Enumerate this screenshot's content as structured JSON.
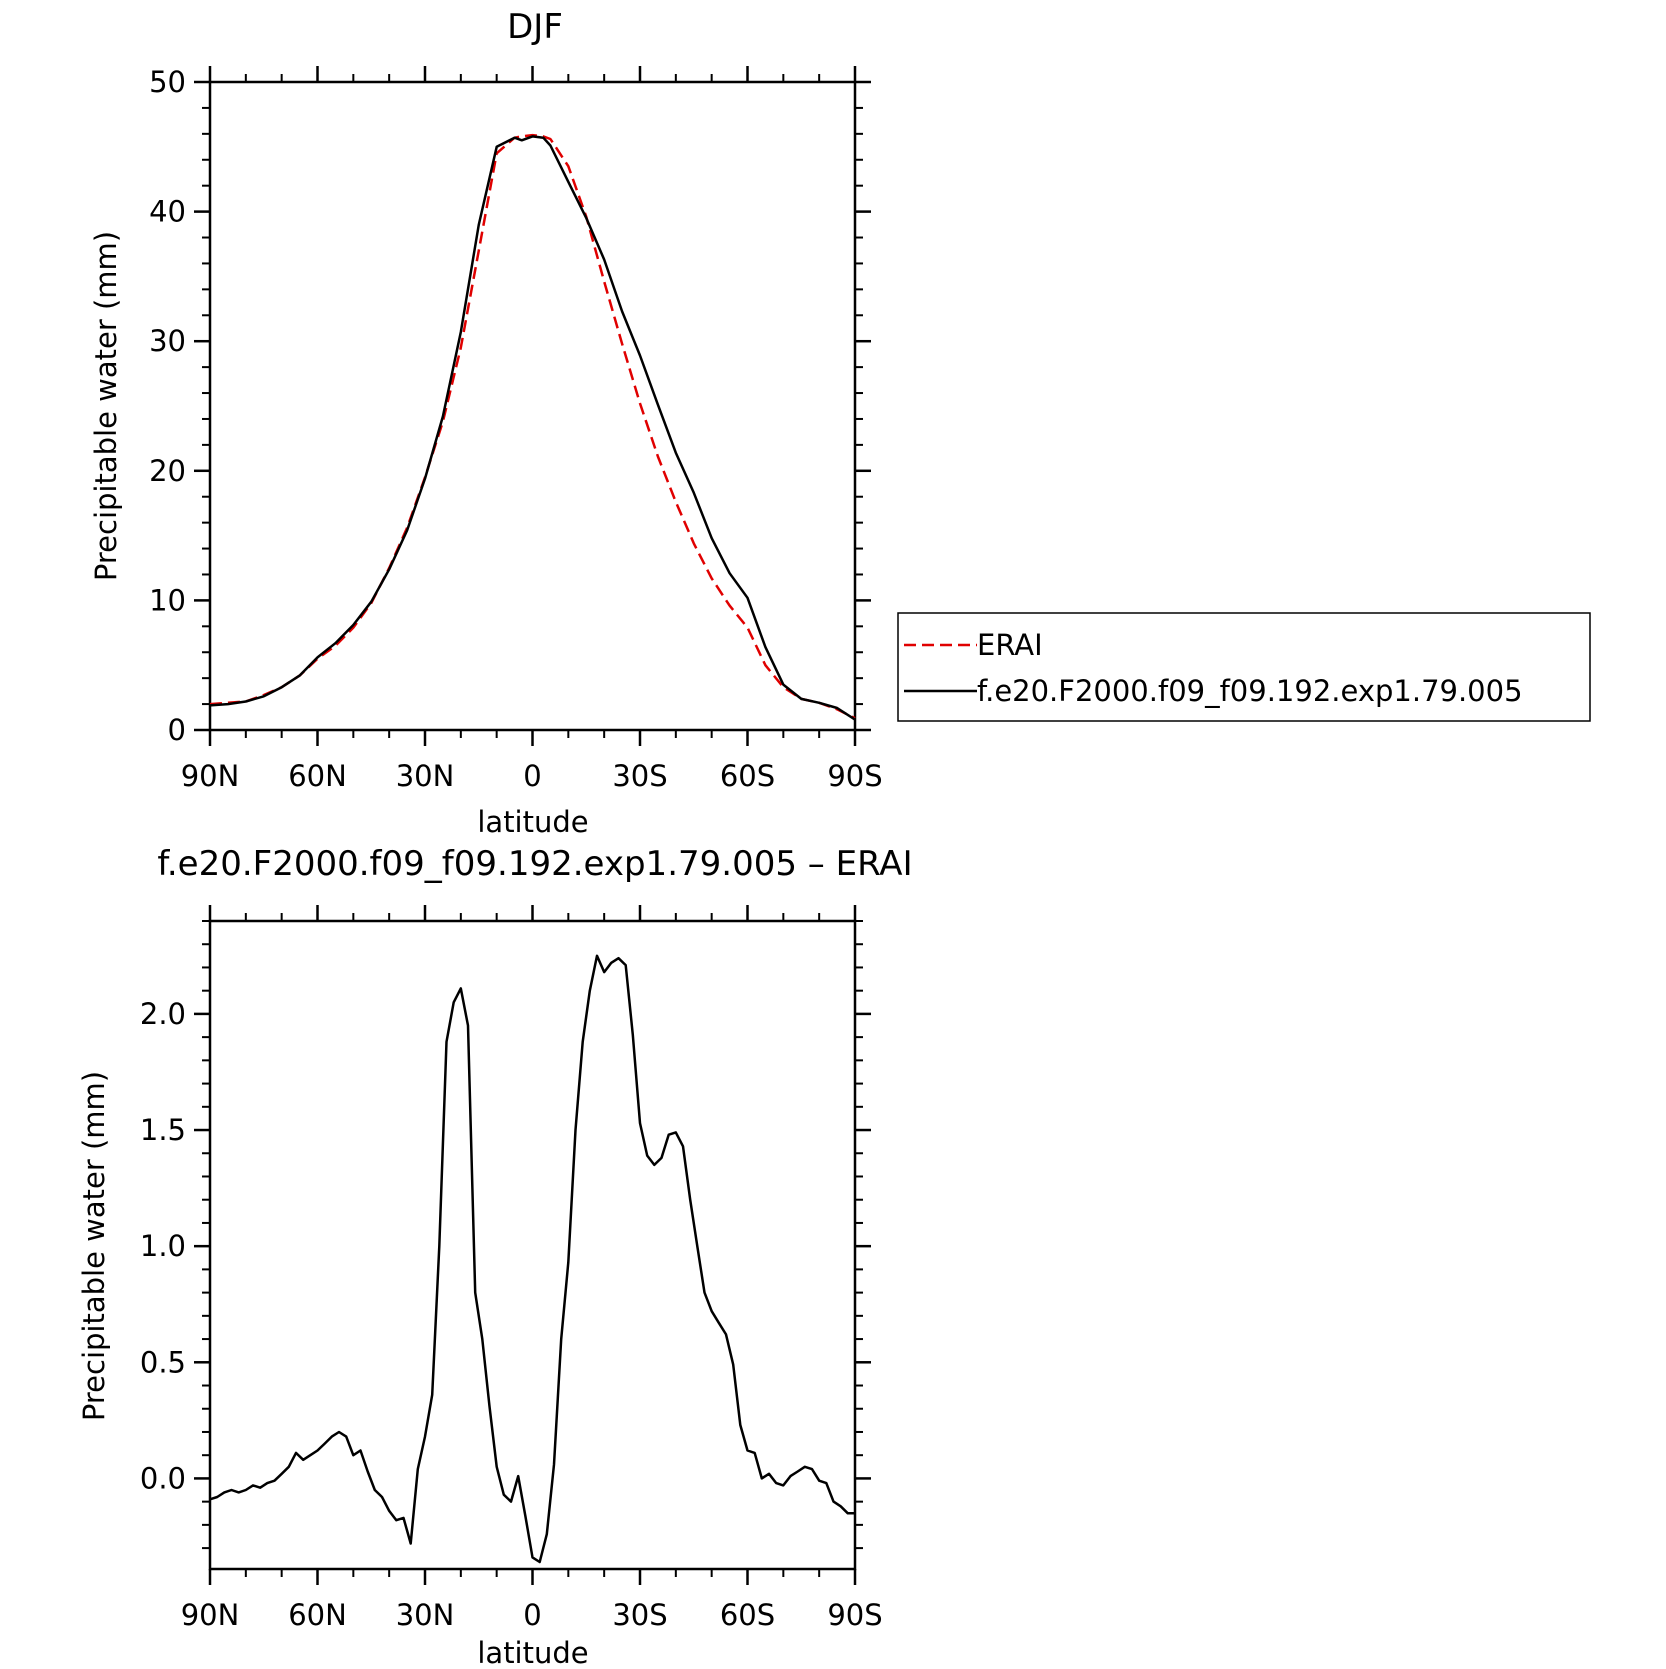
{
  "chart_data": [
    {
      "type": "line",
      "title": "DJF",
      "xlabel": "latitude",
      "ylabel": "Precipitable water (mm)",
      "xlim": [
        90,
        -90
      ],
      "ylim": [
        0,
        50
      ],
      "x_tick_values": [
        90,
        60,
        30,
        0,
        -30,
        -60,
        -90
      ],
      "x_tick_labels": [
        "90N",
        "60N",
        "30N",
        "0",
        "30S",
        "60S",
        "90S"
      ],
      "y_tick_values": [
        0,
        10,
        20,
        30,
        40,
        50
      ],
      "y_tick_labels": [
        "0",
        "10",
        "20",
        "30",
        "40",
        "50"
      ],
      "legend": "outside-right",
      "x": [
        90,
        85,
        80,
        75,
        70,
        65,
        60,
        55,
        50,
        45,
        40,
        35,
        30,
        25,
        20,
        15,
        10,
        5,
        3,
        0,
        -3,
        -5,
        -10,
        -15,
        -20,
        -25,
        -30,
        -35,
        -40,
        -45,
        -50,
        -55,
        -60,
        -65,
        -70,
        -75,
        -80,
        -85,
        -90
      ],
      "series": [
        {
          "name": "ERAI",
          "color": "#e00000",
          "dash": "dashed",
          "values": [
            2.0,
            2.1,
            2.2,
            2.7,
            3.3,
            4.2,
            5.5,
            6.5,
            7.9,
            9.8,
            12.5,
            15.6,
            19.5,
            23.8,
            29.5,
            37.0,
            44.5,
            45.7,
            45.8,
            45.9,
            45.8,
            45.6,
            43.5,
            39.6,
            34.6,
            29.8,
            25.2,
            21.1,
            17.6,
            14.4,
            11.7,
            9.6,
            7.9,
            5.0,
            3.3,
            2.4,
            2.1,
            1.6,
            0.9
          ]
        },
        {
          "name": "f.e20.F2000.f09_f09.192.exp1.79.005",
          "color": "#000000",
          "dash": "solid",
          "values": [
            1.9,
            2.0,
            2.2,
            2.6,
            3.3,
            4.2,
            5.6,
            6.7,
            8.1,
            9.9,
            12.4,
            15.4,
            19.4,
            24.2,
            30.7,
            39.0,
            45.0,
            45.7,
            45.5,
            45.8,
            45.7,
            45.1,
            42.3,
            39.5,
            36.3,
            32.3,
            28.9,
            25.1,
            21.4,
            18.3,
            14.8,
            12.1,
            10.2,
            6.4,
            3.5,
            2.4,
            2.1,
            1.7,
            0.8
          ]
        }
      ]
    },
    {
      "type": "line",
      "title": "f.e20.F2000.f09_f09.192.exp1.79.005 – ERAI",
      "xlabel": "latitude",
      "ylabel": "Precipitable water (mm)",
      "xlim": [
        90,
        -90
      ],
      "ylim": [
        -0.39,
        2.4
      ],
      "x_tick_values": [
        90,
        60,
        30,
        0,
        -30,
        -60,
        -90
      ],
      "x_tick_labels": [
        "90N",
        "60N",
        "30N",
        "0",
        "30S",
        "60S",
        "90S"
      ],
      "y_tick_values": [
        0.0,
        0.5,
        1.0,
        1.5,
        2.0
      ],
      "y_tick_labels": [
        "0.0",
        "0.5",
        "1.0",
        "1.5",
        "2.0"
      ],
      "x": [
        90,
        88,
        86,
        84,
        82,
        80,
        78,
        76,
        74,
        72,
        70,
        68,
        66,
        64,
        62,
        60,
        58,
        56,
        54,
        52,
        50,
        48,
        46,
        44,
        42,
        40,
        38,
        36,
        34,
        32,
        30,
        28,
        26,
        24,
        22,
        20,
        18,
        16,
        14,
        12,
        10,
        8,
        6,
        4,
        2,
        0,
        -2,
        -4,
        -6,
        -8,
        -10,
        -12,
        -14,
        -16,
        -18,
        -20,
        -22,
        -24,
        -26,
        -28,
        -30,
        -32,
        -34,
        -36,
        -38,
        -40,
        -42,
        -44,
        -46,
        -48,
        -50,
        -52,
        -54,
        -56,
        -58,
        -60,
        -62,
        -64,
        -66,
        -68,
        -70,
        -72,
        -74,
        -76,
        -78,
        -80,
        -82,
        -84,
        -86,
        -88,
        -90
      ],
      "series": [
        {
          "name": "",
          "color": "#000000",
          "dash": "solid",
          "values": [
            -0.09,
            -0.08,
            -0.06,
            -0.05,
            -0.06,
            -0.05,
            -0.03,
            -0.04,
            -0.02,
            -0.01,
            0.02,
            0.05,
            0.11,
            0.08,
            0.1,
            0.12,
            0.15,
            0.18,
            0.2,
            0.18,
            0.1,
            0.12,
            0.03,
            -0.05,
            -0.08,
            -0.14,
            -0.18,
            -0.17,
            -0.28,
            0.04,
            0.18,
            0.36,
            1.0,
            1.88,
            2.05,
            2.11,
            1.95,
            0.8,
            0.6,
            0.31,
            0.05,
            -0.07,
            -0.1,
            0.01,
            -0.16,
            -0.34,
            -0.36,
            -0.24,
            0.06,
            0.6,
            0.93,
            1.5,
            1.88,
            2.1,
            2.25,
            2.18,
            2.22,
            2.24,
            2.21,
            1.91,
            1.53,
            1.39,
            1.35,
            1.38,
            1.48,
            1.49,
            1.43,
            1.2,
            1.0,
            0.8,
            0.72,
            0.67,
            0.62,
            0.49,
            0.23,
            0.12,
            0.11,
            0.0,
            0.02,
            -0.02,
            -0.03,
            0.01,
            0.03,
            0.05,
            0.04,
            -0.01,
            -0.02,
            -0.1,
            -0.12,
            -0.15,
            -0.15
          ]
        }
      ]
    }
  ]
}
